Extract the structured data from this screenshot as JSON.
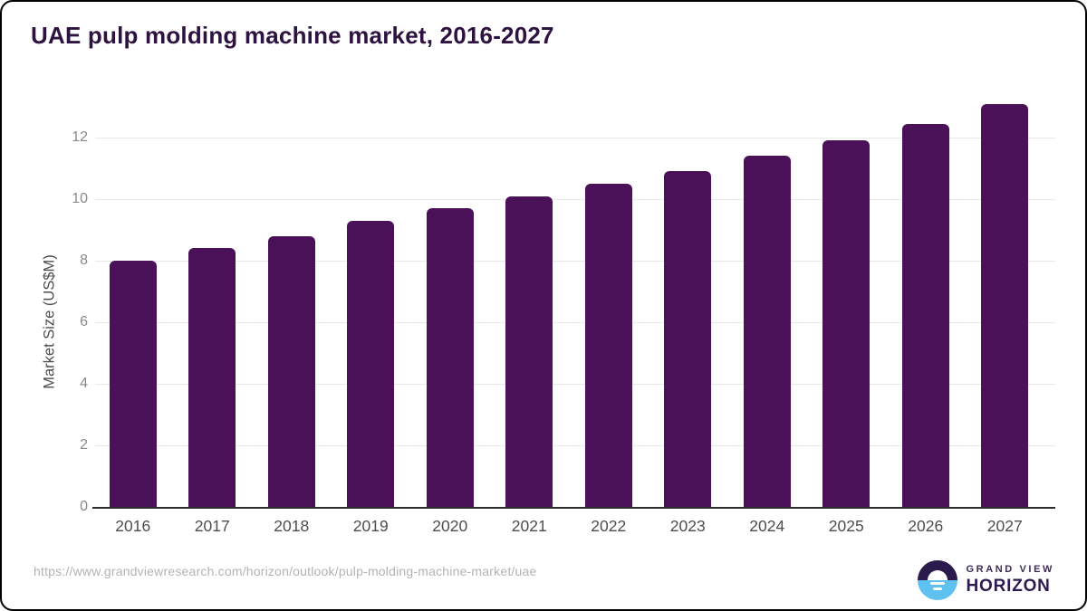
{
  "header": {
    "title": "UAE pulp molding machine market, 2016-2027"
  },
  "chart_data": {
    "type": "bar",
    "title": "UAE pulp molding machine market, 2016-2027",
    "categories": [
      "2016",
      "2017",
      "2018",
      "2019",
      "2020",
      "2021",
      "2022",
      "2023",
      "2024",
      "2025",
      "2026",
      "2027"
    ],
    "values": [
      8.0,
      8.4,
      8.8,
      9.3,
      9.7,
      10.1,
      10.5,
      10.9,
      11.4,
      11.9,
      12.45,
      13.1
    ],
    "xlabel": "",
    "ylabel": "Market Size (US$M)",
    "yticks": [
      0,
      2,
      4,
      6,
      8,
      10,
      12
    ],
    "ylim": [
      0,
      13.5
    ],
    "grid": true,
    "legend_position": "none",
    "bar_color": "#4a1158"
  },
  "footer": {
    "source_url": "https://www.grandviewresearch.com/horizon/outlook/pulp-molding-machine-market/uae",
    "logo": {
      "brand_top": "GRAND VIEW",
      "brand_bottom": "HORIZON",
      "icon": "sunrise-horizon-icon",
      "icon_purple": "#2b1b4d",
      "icon_blue": "#5ec1ef"
    }
  },
  "colors": {
    "bar": "#4a1158",
    "title_text": "#2e1240",
    "axis_text": "#4d4d4d",
    "tick_text": "#8a8a8a",
    "gridline": "#e9e9e9",
    "axis_line": "#2b2b2b",
    "url_text": "#b3b3b3",
    "background": "#ffffff"
  }
}
